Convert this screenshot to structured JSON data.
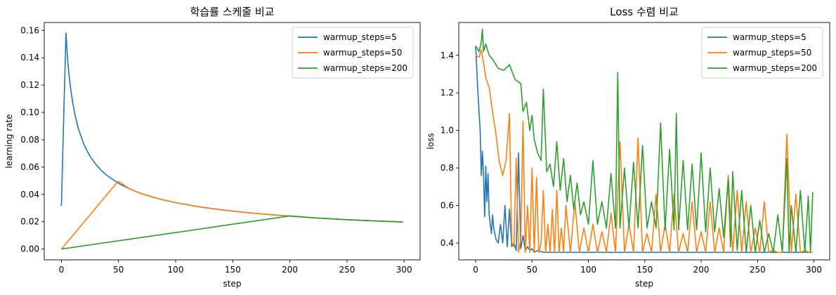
{
  "chart_data": [
    {
      "type": "line",
      "title": "학습률 스케줄 비교",
      "xlabel": "step",
      "ylabel": "learning rate",
      "xlim": [
        -15,
        314
      ],
      "ylim": [
        -0.0079,
        0.1658
      ],
      "xticks": [
        0,
        50,
        100,
        150,
        200,
        250,
        300
      ],
      "yticks": [
        0.0,
        0.02,
        0.04,
        0.06,
        0.08,
        0.1,
        0.12,
        0.14,
        0.16
      ],
      "ytick_labels": [
        "0.00",
        "0.02",
        "0.04",
        "0.06",
        "0.08",
        "0.10",
        "0.12",
        "0.14",
        "0.16"
      ],
      "legend": "top-right",
      "grid": false,
      "series": [
        {
          "name": "warmup_steps=5",
          "color": "#1f77b4",
          "x": [
            0,
            1,
            2,
            3,
            4,
            5,
            6,
            7,
            8,
            10,
            12,
            15,
            20,
            25,
            30,
            35,
            40,
            50,
            60,
            70,
            80,
            90,
            100,
            120,
            140,
            160,
            180,
            200,
            220,
            250,
            280,
            299
          ],
          "y": [
            0.0316,
            0.0632,
            0.0949,
            0.1265,
            0.1581,
            0.1443,
            0.1336,
            0.125,
            0.1179,
            0.1066,
            0.098,
            0.0877,
            0.076,
            0.068,
            0.0621,
            0.0575,
            0.0538,
            0.0481,
            0.0439,
            0.0406,
            0.038,
            0.0358,
            0.034,
            0.031,
            0.0287,
            0.0269,
            0.0254,
            0.0241,
            0.0229,
            0.0215,
            0.0204,
            0.0198
          ]
        },
        {
          "name": "warmup_steps=50",
          "color": "#ff7f0e",
          "x": [
            0,
            10,
            20,
            30,
            40,
            49,
            50,
            60,
            70,
            80,
            90,
            100,
            120,
            140,
            160,
            180,
            200,
            220,
            250,
            280,
            299
          ],
          "y": [
            0.0,
            0.01,
            0.02,
            0.03,
            0.04,
            0.049,
            0.0495,
            0.0439,
            0.0406,
            0.038,
            0.0358,
            0.034,
            0.031,
            0.0287,
            0.0269,
            0.0254,
            0.0241,
            0.0229,
            0.0215,
            0.0204,
            0.0198
          ]
        },
        {
          "name": "warmup_steps=200",
          "color": "#2ca02c",
          "x": [
            0,
            50,
            100,
            150,
            199,
            200,
            220,
            250,
            280,
            299
          ],
          "y": [
            0.0,
            0.0061,
            0.0121,
            0.0182,
            0.0241,
            0.0243,
            0.0229,
            0.0215,
            0.0204,
            0.0198
          ]
        }
      ]
    },
    {
      "type": "line",
      "title": "Loss 수렴 비교",
      "xlabel": "step",
      "ylabel": "loss",
      "xlim": [
        -15,
        314
      ],
      "ylim": [
        0.31,
        1.575
      ],
      "xticks": [
        0,
        50,
        100,
        150,
        200,
        250,
        300
      ],
      "yticks": [
        0.4,
        0.6,
        0.8,
        1.0,
        1.2,
        1.4
      ],
      "ytick_labels": [
        "0.4",
        "0.6",
        "0.8",
        "1.0",
        "1.2",
        "1.4"
      ],
      "legend": "top-right",
      "grid": false,
      "series": [
        {
          "name": "warmup_steps=5",
          "color": "#1f77b4",
          "x": [
            0,
            2,
            4,
            5,
            6,
            7,
            8,
            9,
            10,
            11,
            12,
            13,
            14,
            15,
            16,
            17,
            18,
            20,
            22,
            24,
            26,
            28,
            30,
            32,
            34,
            36,
            38,
            40,
            42,
            44,
            46,
            48,
            50,
            52,
            55,
            60,
            70,
            80,
            100,
            120,
            140,
            160,
            180,
            200,
            220,
            240,
            260,
            280,
            299
          ],
          "y": [
            1.45,
            1.2,
            1.0,
            0.76,
            0.89,
            0.76,
            0.54,
            0.81,
            0.62,
            0.77,
            0.55,
            0.5,
            0.45,
            0.55,
            0.48,
            0.45,
            0.42,
            0.4,
            0.5,
            0.4,
            0.6,
            0.38,
            0.58,
            0.38,
            0.4,
            0.36,
            0.88,
            0.37,
            0.44,
            0.36,
            0.38,
            0.36,
            0.37,
            0.35,
            0.36,
            0.35,
            0.35,
            0.35,
            0.35,
            0.35,
            0.35,
            0.35,
            0.35,
            0.35,
            0.35,
            0.35,
            0.35,
            0.35,
            0.35
          ]
        },
        {
          "name": "warmup_steps=50",
          "color": "#ff7f0e",
          "x": [
            0,
            3,
            5,
            7,
            9,
            12,
            15,
            18,
            21,
            24,
            27,
            30,
            32,
            34,
            36,
            38,
            40,
            42,
            44,
            46,
            48,
            50,
            52,
            54,
            56,
            58,
            60,
            62,
            64,
            66,
            68,
            70,
            72,
            74,
            76,
            78,
            80,
            84,
            88,
            92,
            96,
            100,
            104,
            108,
            112,
            116,
            120,
            124,
            128,
            132,
            136,
            140,
            144,
            148,
            152,
            156,
            160,
            164,
            168,
            172,
            176,
            180,
            184,
            188,
            192,
            196,
            200,
            204,
            208,
            212,
            216,
            220,
            224,
            228,
            232,
            236,
            240,
            244,
            248,
            252,
            256,
            260,
            264,
            268,
            272,
            276,
            280,
            284,
            288,
            292,
            296,
            299
          ],
          "y": [
            1.4,
            1.39,
            1.43,
            1.36,
            1.28,
            1.23,
            1.1,
            0.98,
            0.83,
            0.76,
            0.84,
            1.09,
            0.4,
            0.38,
            0.85,
            0.35,
            0.42,
            1.05,
            0.35,
            0.6,
            0.35,
            0.8,
            0.35,
            0.75,
            0.35,
            0.4,
            0.68,
            0.35,
            0.5,
            0.35,
            0.58,
            0.35,
            0.68,
            0.35,
            0.48,
            0.35,
            0.6,
            0.35,
            0.62,
            0.35,
            0.48,
            0.35,
            0.5,
            0.35,
            0.46,
            0.35,
            0.56,
            0.35,
            0.94,
            0.35,
            0.5,
            0.35,
            0.96,
            0.35,
            0.45,
            0.35,
            0.66,
            0.35,
            0.5,
            0.35,
            0.66,
            0.35,
            0.45,
            0.35,
            0.62,
            0.35,
            0.46,
            0.35,
            0.62,
            0.35,
            0.48,
            0.35,
            0.76,
            0.35,
            0.68,
            0.35,
            0.62,
            0.35,
            0.48,
            0.35,
            0.62,
            0.35,
            0.36,
            0.35,
            0.35,
            0.98,
            0.35,
            0.66,
            0.35,
            0.36,
            0.35,
            0.35
          ]
        },
        {
          "name": "warmup_steps=200",
          "color": "#2ca02c",
          "x": [
            0,
            3,
            5,
            6,
            7,
            9,
            12,
            15,
            20,
            25,
            30,
            35,
            40,
            42,
            45,
            48,
            50,
            52,
            55,
            58,
            60,
            63,
            66,
            69,
            72,
            75,
            78,
            81,
            84,
            87,
            90,
            93,
            96,
            100,
            104,
            108,
            112,
            116,
            120,
            124,
            126,
            128,
            132,
            136,
            140,
            144,
            148,
            152,
            156,
            160,
            164,
            168,
            172,
            176,
            178,
            180,
            184,
            188,
            192,
            196,
            200,
            204,
            208,
            212,
            216,
            220,
            224,
            226,
            228,
            232,
            236,
            240,
            244,
            248,
            252,
            256,
            260,
            264,
            268,
            272,
            276,
            278,
            280,
            284,
            288,
            292,
            295,
            297,
            299
          ],
          "y": [
            1.45,
            1.42,
            1.47,
            1.54,
            1.42,
            1.46,
            1.4,
            1.38,
            1.33,
            1.32,
            1.35,
            1.27,
            1.25,
            1.1,
            1.15,
            1.0,
            1.08,
            0.95,
            0.88,
            0.84,
            1.22,
            0.78,
            0.82,
            0.7,
            0.94,
            0.68,
            0.85,
            0.62,
            0.76,
            0.58,
            0.72,
            0.55,
            0.62,
            0.5,
            0.84,
            0.5,
            0.62,
            0.48,
            0.77,
            0.48,
            1.31,
            0.48,
            0.8,
            0.48,
            0.83,
            0.48,
            0.92,
            0.48,
            0.62,
            0.48,
            1.04,
            0.47,
            0.9,
            0.47,
            1.09,
            0.47,
            0.84,
            0.47,
            0.82,
            0.47,
            0.88,
            0.46,
            0.8,
            0.46,
            0.69,
            0.43,
            0.74,
            0.38,
            0.78,
            0.36,
            0.68,
            0.35,
            0.6,
            0.35,
            0.52,
            0.35,
            0.45,
            0.35,
            0.55,
            0.35,
            0.85,
            0.35,
            0.6,
            0.35,
            0.68,
            0.35,
            0.65,
            0.35,
            0.67
          ]
        }
      ]
    }
  ]
}
